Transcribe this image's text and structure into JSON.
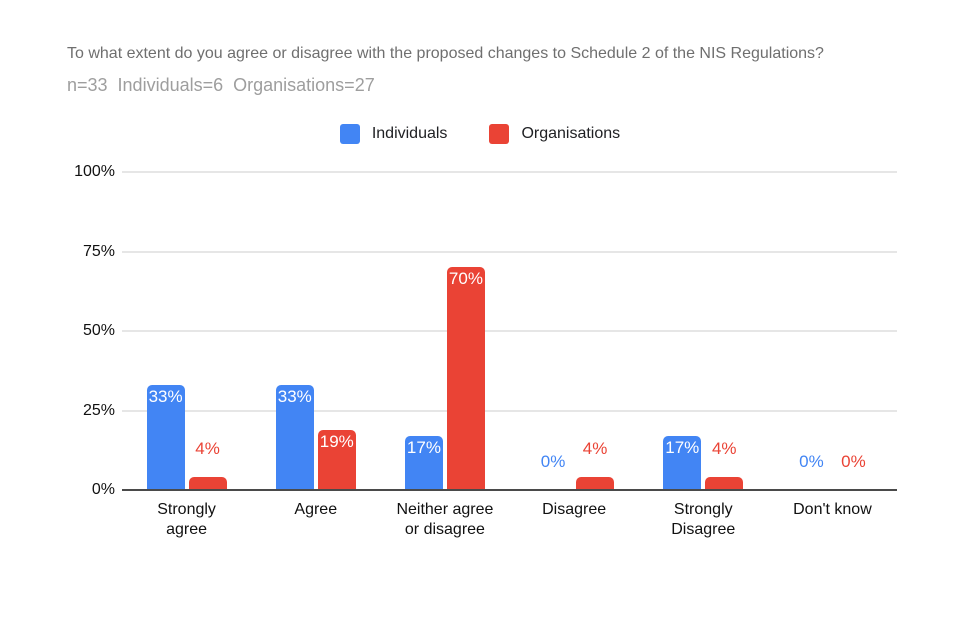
{
  "header": {
    "title": "To what extent do you agree or disagree with the proposed changes to Schedule 2 of the NIS Regulations?",
    "subtitle": "n=33  Individuals=6  Organisations=27"
  },
  "colors": {
    "individuals_blue": "#4285F4",
    "organisations_red": "#EA4335",
    "title_gray": "#6F6F6F",
    "subtitle_gray": "#9E9E9E",
    "gridline_gray": "#E6E6E6",
    "axis_line": "#4A4A4A"
  },
  "chart_data": {
    "type": "bar",
    "title": "To what extent do you agree or disagree with the proposed changes to Schedule 2 of the NIS Regulations?",
    "subtitle": "n=33  Individuals=6  Organisations=27",
    "categories": [
      "Strongly\nagree",
      "Agree",
      "Neither agree\nor disagree",
      "Disagree",
      "Strongly\nDisagree",
      "Don't know"
    ],
    "series": [
      {
        "name": "Individuals",
        "color": "#4285F4",
        "values": [
          33,
          33,
          17,
          0,
          17,
          0
        ],
        "labels": [
          "33%",
          "33%",
          "17%",
          "0%",
          "17%",
          "0%"
        ]
      },
      {
        "name": "Organisations",
        "color": "#EA4335",
        "values": [
          4,
          19,
          70,
          4,
          4,
          0
        ],
        "labels": [
          "4%",
          "19%",
          "70%",
          "4%",
          "4%",
          "0%"
        ]
      }
    ],
    "yticks": [
      {
        "label": "0%",
        "value": 0
      },
      {
        "label": "25%",
        "value": 25
      },
      {
        "label": "50%",
        "value": 50
      },
      {
        "label": "75%",
        "value": 75
      },
      {
        "label": "100%",
        "value": 100
      }
    ],
    "ylim": [
      0,
      100
    ],
    "value_suffix": "%",
    "legend_position": "top-center",
    "grid": true
  }
}
